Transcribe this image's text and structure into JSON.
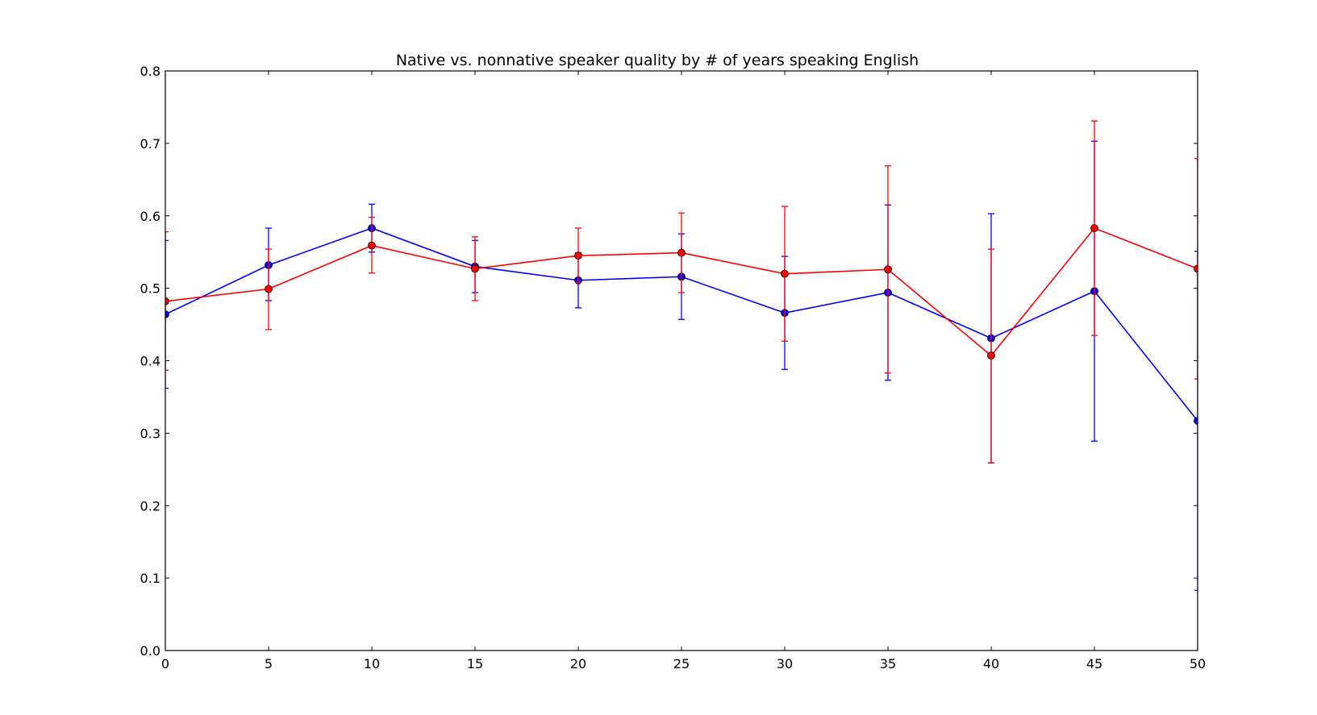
{
  "chart_data": {
    "type": "line",
    "title": "Native vs. nonnative speaker quality by # of years speaking English",
    "xlabel": "",
    "ylabel": "",
    "xlim": [
      0,
      50
    ],
    "ylim": [
      0.0,
      0.8
    ],
    "x_ticks": [
      "0",
      "5",
      "10",
      "15",
      "20",
      "25",
      "30",
      "35",
      "40",
      "45",
      "50"
    ],
    "y_ticks": [
      "0.0",
      "0.1",
      "0.2",
      "0.3",
      "0.4",
      "0.5",
      "0.6",
      "0.7",
      "0.8"
    ],
    "grid": false,
    "legend": "none",
    "x": [
      0,
      5,
      10,
      15,
      20,
      25,
      30,
      35,
      40,
      45,
      50
    ],
    "series": [
      {
        "color": "#0000ff",
        "values": [
          0.464,
          0.532,
          0.583,
          0.53,
          0.511,
          0.516,
          0.466,
          0.494,
          0.431,
          0.496,
          0.317
        ],
        "err_low": [
          0.362,
          0.483,
          0.55,
          0.494,
          0.473,
          0.457,
          0.388,
          0.373,
          0.259,
          0.289,
          0.083
        ],
        "err_high": [
          0.566,
          0.583,
          0.616,
          0.566,
          0.549,
          0.575,
          0.544,
          0.615,
          0.603,
          0.703,
          0.551
        ]
      },
      {
        "color": "#ff0000",
        "values": [
          0.482,
          0.499,
          0.559,
          0.527,
          0.545,
          0.549,
          0.52,
          0.526,
          0.407,
          0.583,
          0.527
        ],
        "err_low": [
          0.387,
          0.443,
          0.521,
          0.483,
          0.508,
          0.494,
          0.427,
          0.383,
          0.259,
          0.435,
          0.375
        ],
        "err_high": [
          0.578,
          0.554,
          0.598,
          0.571,
          0.583,
          0.604,
          0.613,
          0.669,
          0.554,
          0.731,
          0.679
        ]
      }
    ]
  }
}
